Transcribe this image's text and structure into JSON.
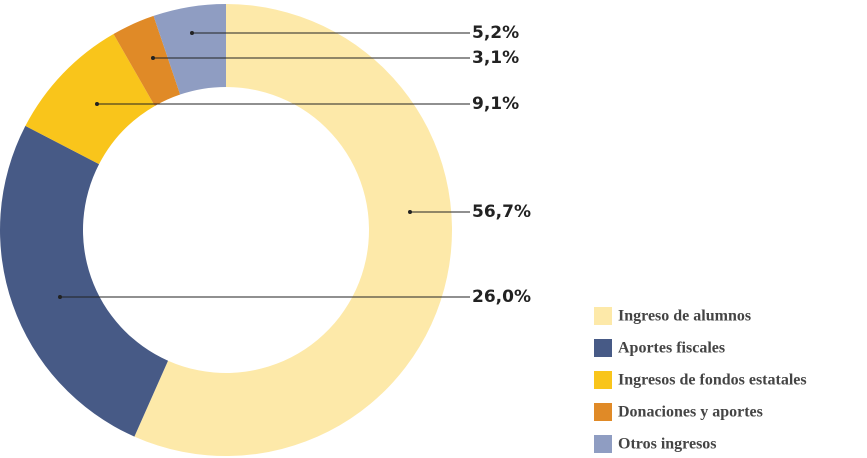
{
  "chart_data": {
    "type": "donut",
    "categories": [
      "Ingreso de alumnos",
      "Aportes fiscales",
      "Ingresos de fondos estatales",
      "Donaciones y aportes",
      "Otros ingresos"
    ],
    "values": [
      56.7,
      26.0,
      9.1,
      3.1,
      5.2
    ],
    "value_labels": [
      "56,7%",
      "26,0%",
      "9,1%",
      "3,1%",
      "5,2%"
    ],
    "colors": [
      "#fde9a9",
      "#475a86",
      "#f9c51b",
      "#e08a27",
      "#8f9dc2"
    ],
    "legend": "bottom-right"
  }
}
